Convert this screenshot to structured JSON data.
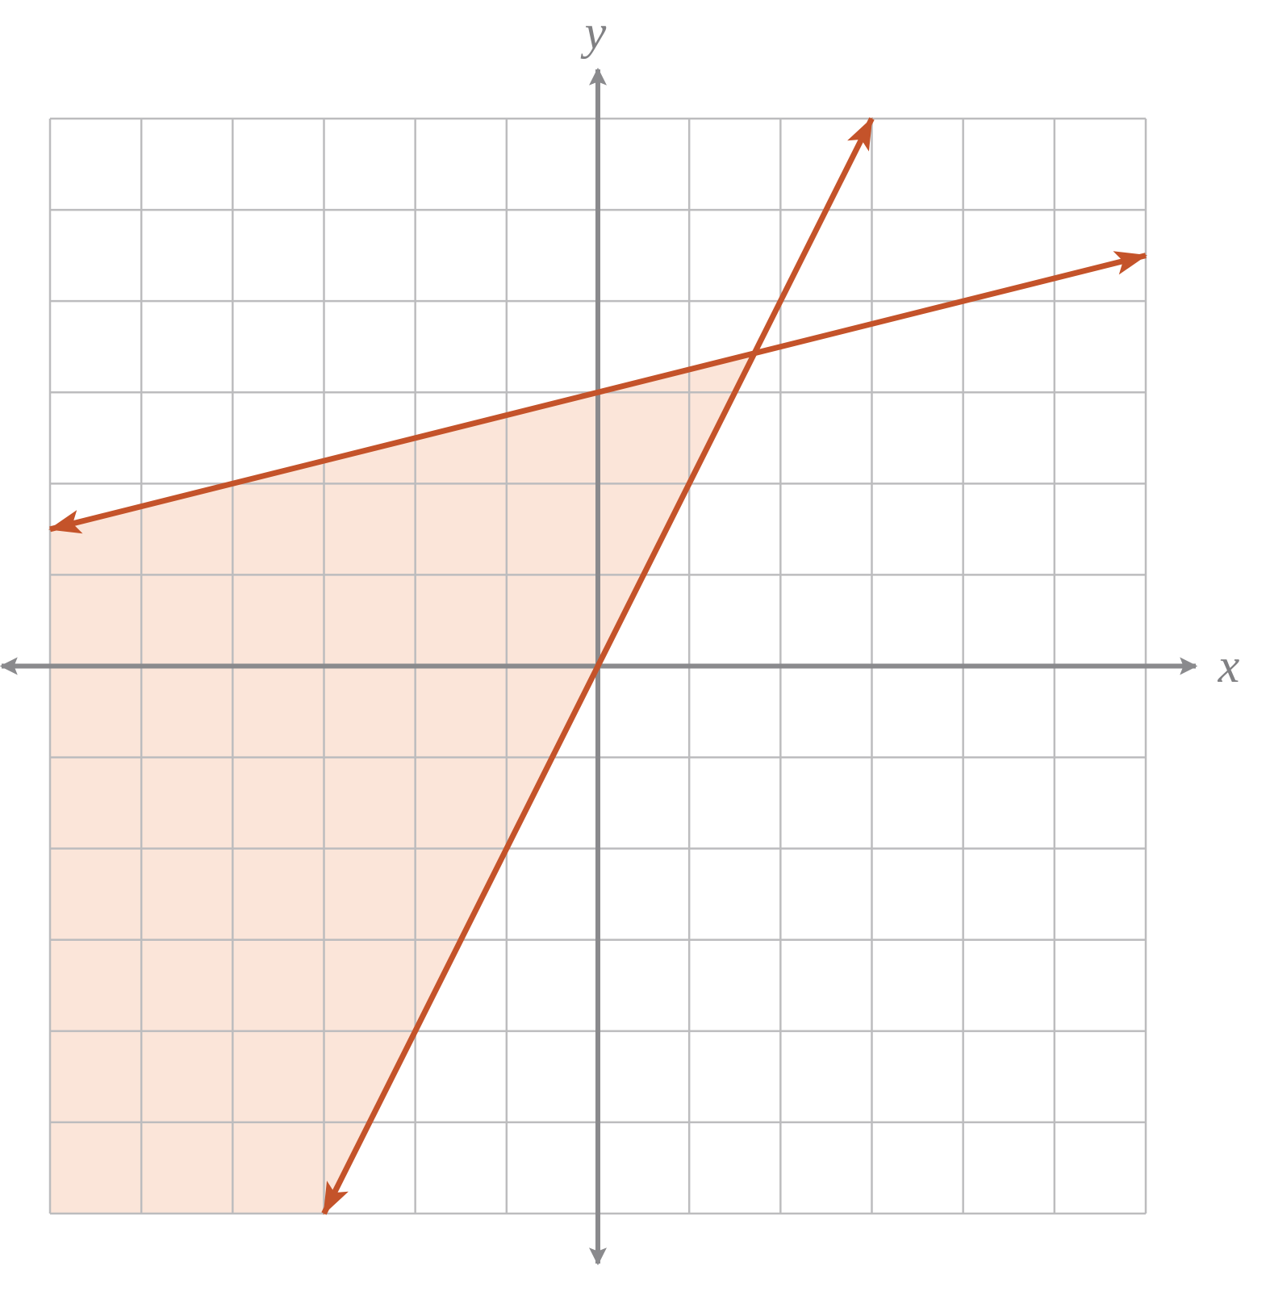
{
  "chart_data": {
    "type": "line",
    "x_label": "x",
    "y_label": "y",
    "xlim": [
      -6,
      6
    ],
    "ylim": [
      -6,
      6
    ],
    "xticks": [
      -6,
      -5,
      -4,
      -3,
      -2,
      -1,
      0,
      1,
      2,
      3,
      4,
      5,
      6
    ],
    "yticks": [
      -6,
      -5,
      -4,
      -3,
      -2,
      -1,
      0,
      1,
      2,
      3,
      4,
      5,
      6
    ],
    "grid": true,
    "series": [
      {
        "color": "#c4532a",
        "x": [
          -3,
          3
        ],
        "values": [
          -6,
          6
        ]
      },
      {
        "color": "#c4532a",
        "x": [
          -6,
          6
        ],
        "values": [
          1.5,
          4.5
        ]
      }
    ],
    "shaded_region": {
      "color": "#fbe5d9",
      "x": [
        -6,
        -3,
        1.71,
        -6
      ],
      "values": [
        -6,
        -6,
        3.43,
        1.5
      ]
    }
  }
}
